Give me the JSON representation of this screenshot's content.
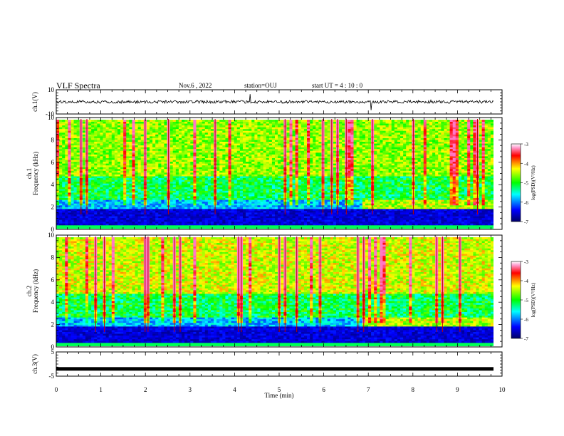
{
  "header": {
    "title": "VLF Spectra",
    "date": "Nov.6 , 2022",
    "station": "station=OUJ",
    "start_ut": "start UT = 4 : 10 : 0"
  },
  "chart_data": [
    {
      "type": "line",
      "ylabel": "ch.1(V)",
      "yticks": [
        10,
        -10
      ],
      "ylim": [
        -10,
        10
      ],
      "baseline": 0,
      "series": []
    },
    {
      "type": "heatmap",
      "ylabel": "ch.1\nFrequency (kHz)",
      "yticks": [
        0,
        2,
        4,
        6,
        8,
        10
      ],
      "ylim": [
        0,
        10
      ],
      "xlim": [
        0,
        10
      ],
      "colorbar": {
        "label": "log(PSD)(V²/Hz)",
        "ticks": [
          -3,
          -4,
          -5,
          -6,
          -7
        ],
        "range": [
          -7,
          -3
        ]
      }
    },
    {
      "type": "heatmap",
      "ylabel": "ch.2\nFrequency (kHz)",
      "yticks": [
        0,
        2,
        4,
        6,
        8,
        10
      ],
      "ylim": [
        0,
        10
      ],
      "xlim": [
        0,
        10
      ],
      "colorbar": {
        "label": "log(PSD)(V²/Hz)",
        "ticks": [
          -3,
          -4,
          -5,
          -6,
          -7
        ],
        "range": [
          -7,
          -3
        ]
      }
    },
    {
      "type": "line",
      "ylabel": "ch.3(V)",
      "yticks": [
        5,
        -5
      ],
      "ylim": [
        -5,
        5
      ],
      "series": [
        {
          "values_const": -2
        }
      ]
    }
  ],
  "xaxis": {
    "label": "Time (min)",
    "ticks": [
      0,
      1,
      2,
      3,
      4,
      5,
      6,
      7,
      8,
      9,
      10
    ],
    "xlim": [
      0,
      10
    ]
  }
}
